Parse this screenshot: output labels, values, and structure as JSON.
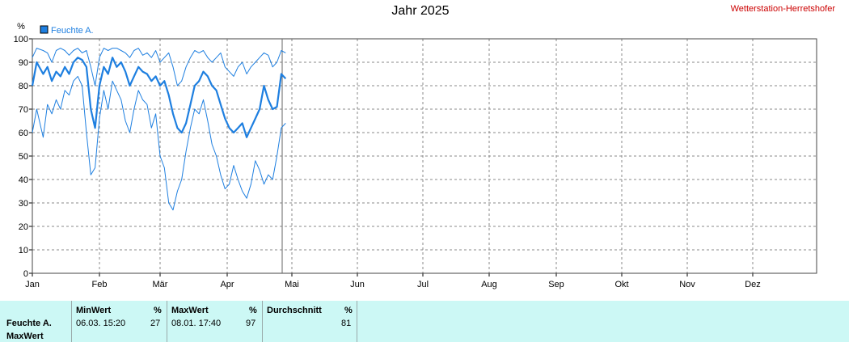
{
  "header": {
    "title": "Jahr 2025",
    "station": "Wetterstation-Herretshofer"
  },
  "chart_data": {
    "type": "line",
    "title": "Jahr 2025",
    "ylabel": "%",
    "ylim": [
      0,
      100
    ],
    "yticks": [
      "0",
      "10",
      "20",
      "30",
      "40",
      "50",
      "60",
      "70",
      "80",
      "90",
      "100"
    ],
    "months": [
      "Jan",
      "Feb",
      "Mär",
      "Apr",
      "Mai",
      "Jun",
      "Jul",
      "Aug",
      "Sep",
      "Okt",
      "Nov",
      "Dez"
    ],
    "legend": [
      {
        "name": "Feuchte A.",
        "color": "#1e7fe0"
      }
    ],
    "grid": true,
    "series": [
      {
        "name": "Feuchte A.",
        "x": [
          1,
          3,
          6,
          8,
          10,
          12,
          14,
          16,
          18,
          20,
          22,
          24,
          26,
          28,
          30,
          32,
          34,
          36,
          38,
          40,
          42,
          44,
          46,
          48,
          50,
          52,
          54,
          56,
          58,
          60,
          62,
          64,
          66,
          68,
          70,
          72,
          74,
          76,
          78,
          80,
          82,
          84,
          86,
          88,
          90,
          92,
          94,
          96,
          98,
          100,
          102,
          104,
          106,
          108,
          110,
          112,
          114,
          116,
          118
        ],
        "values": [
          80,
          90,
          85,
          88,
          82,
          86,
          84,
          88,
          85,
          90,
          92,
          91,
          88,
          70,
          62,
          80,
          88,
          85,
          92,
          88,
          90,
          86,
          80,
          84,
          88,
          86,
          85,
          82,
          84,
          80,
          82,
          76,
          68,
          62,
          60,
          64,
          72,
          80,
          82,
          86,
          84,
          80,
          78,
          72,
          66,
          62,
          60,
          62,
          64,
          58,
          62,
          66,
          70,
          80,
          74,
          70,
          71,
          85,
          83
        ]
      },
      {
        "name": "max",
        "x": [
          1,
          3,
          6,
          8,
          10,
          12,
          14,
          16,
          18,
          20,
          22,
          24,
          26,
          28,
          30,
          32,
          34,
          36,
          38,
          40,
          42,
          44,
          46,
          48,
          50,
          52,
          54,
          56,
          58,
          60,
          62,
          64,
          66,
          68,
          70,
          72,
          74,
          76,
          78,
          80,
          82,
          84,
          86,
          88,
          90,
          92,
          94,
          96,
          98,
          100,
          102,
          104,
          106,
          108,
          110,
          112,
          114,
          116,
          118
        ],
        "values": [
          92,
          96,
          95,
          94,
          90,
          95,
          96,
          95,
          93,
          95,
          96,
          94,
          95,
          88,
          80,
          92,
          96,
          95,
          96,
          96,
          95,
          94,
          92,
          95,
          96,
          93,
          94,
          92,
          95,
          90,
          92,
          94,
          88,
          80,
          82,
          88,
          92,
          95,
          94,
          95,
          92,
          90,
          92,
          94,
          88,
          86,
          84,
          88,
          90,
          85,
          88,
          90,
          92,
          94,
          93,
          88,
          90,
          95,
          94
        ]
      },
      {
        "name": "min",
        "x": [
          1,
          3,
          6,
          8,
          10,
          12,
          14,
          16,
          18,
          20,
          22,
          24,
          26,
          28,
          30,
          32,
          34,
          36,
          38,
          40,
          42,
          44,
          46,
          48,
          50,
          52,
          54,
          56,
          58,
          60,
          62,
          64,
          66,
          68,
          70,
          72,
          74,
          76,
          78,
          80,
          82,
          84,
          86,
          88,
          90,
          92,
          94,
          96,
          98,
          100,
          102,
          104,
          106,
          108,
          110,
          112,
          114,
          116,
          118
        ],
        "values": [
          60,
          70,
          58,
          72,
          68,
          74,
          70,
          78,
          76,
          82,
          84,
          80,
          60,
          42,
          45,
          66,
          78,
          70,
          82,
          78,
          74,
          65,
          60,
          70,
          78,
          74,
          72,
          62,
          68,
          50,
          45,
          30,
          27,
          35,
          40,
          52,
          62,
          70,
          68,
          74,
          65,
          55,
          50,
          42,
          36,
          38,
          46,
          40,
          35,
          32,
          38,
          48,
          44,
          38,
          42,
          40,
          50,
          62,
          64
        ]
      }
    ]
  },
  "footer": {
    "row_label_1": "Feuchte A.",
    "row_label_2": "MaxWert",
    "min_header": "MinWert",
    "min_unit": "%",
    "min_time": "06.03.  15:20",
    "min_value": "27",
    "max_header": "MaxWert",
    "max_unit": "%",
    "max_time": "08.01.  17:40",
    "max_value": "97",
    "avg_header": "Durchschnitt",
    "avg_unit": "%",
    "avg_value": "81"
  }
}
